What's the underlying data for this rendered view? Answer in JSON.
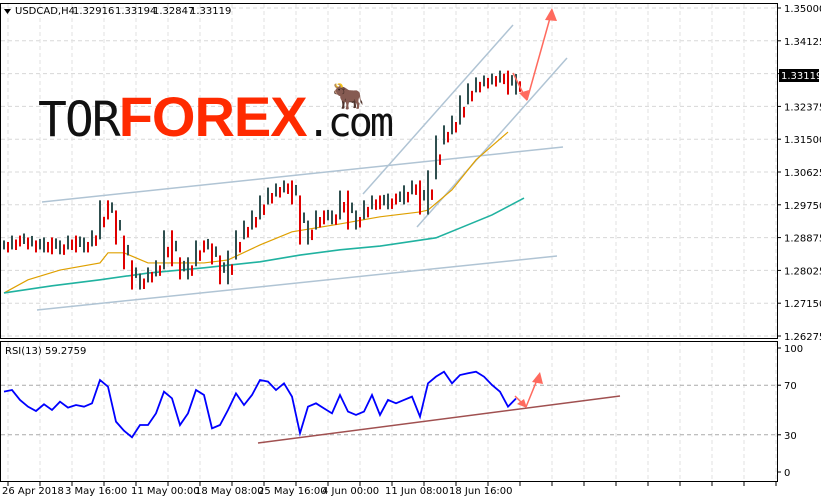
{
  "header": {
    "symbol_label": "USDCAD,H4",
    "open": "1.32916",
    "high": "1.33194",
    "low": "1.32847",
    "close": "1.33119",
    "dropdown_icon": "triangle-down-icon"
  },
  "logo": {
    "tor": "TOR",
    "forex": "FOREX",
    "com": ".com"
  },
  "price_axis": {
    "ticks": [
      "1.35000",
      "1.34125",
      "1.33250",
      "1.32375",
      "1.31500",
      "1.30625",
      "1.29750",
      "1.28875",
      "1.28025",
      "1.27150",
      "1.26275"
    ],
    "current_price": "1.33119"
  },
  "rsi": {
    "label": "RSI(13) 59.2759",
    "ticks": [
      "100",
      "70",
      "30",
      "0"
    ]
  },
  "time_axis": {
    "ticks": [
      "26 Apr 2018",
      "3 May 16:00",
      "11 May 00:00",
      "18 May 08:00",
      "25 May 16:00",
      "4 Jun 00:00",
      "11 Jun 08:00",
      "18 Jun 16:00"
    ]
  },
  "colors": {
    "bull_bar": "#2f4f4f",
    "bear_bar": "#e00000",
    "ma_fast": "#dfa000",
    "ma_slow": "#20b2a0",
    "rsi_line": "#0000ff",
    "channel": "#b0c4d4",
    "arrow": "#ff6a5e",
    "rsi_trend": "#a05050",
    "price_box": "#000000"
  },
  "chart_data": [
    {
      "type": "bar",
      "title": "USDCAD,H4",
      "ylim": [
        1.26275,
        1.35
      ],
      "grid": true,
      "close": [
        1.2868,
        1.2881,
        1.2876,
        1.2868,
        1.286,
        1.2876,
        1.2855,
        1.2868,
        1.2881,
        1.286,
        1.2876,
        1.2895,
        1.2975,
        1.2948,
        1.2881,
        1.2815,
        1.2761,
        1.278,
        1.2796,
        1.2815,
        1.2895,
        1.2823,
        1.2788,
        1.2823,
        1.2868,
        1.286,
        1.2828,
        1.2775,
        1.2841,
        1.2895,
        1.2921,
        1.2948,
        1.2988,
        1.3009,
        1.302,
        1.3028,
        1.2988,
        1.2881,
        1.2921,
        1.2948,
        1.2935,
        1.2948,
        1.3001,
        1.2921,
        1.2948,
        1.2975,
        1.2988,
        1.2975,
        1.2993,
        1.2988,
        1.3015,
        1.3028,
        1.2961,
        1.3055,
        1.3148,
        1.3175,
        1.3201,
        1.3255,
        1.3287,
        1.3303,
        1.3308,
        1.3313,
        1.3321,
        1.3281,
        1.33119
      ],
      "ma_fast": [
        [
          0,
          1.274
        ],
        [
          3,
          1.2775
        ],
        [
          7,
          1.2801
        ],
        [
          12,
          1.282
        ],
        [
          13,
          1.2847
        ],
        [
          15,
          1.2847
        ],
        [
          18,
          1.282
        ],
        [
          25,
          1.282
        ],
        [
          28,
          1.2828
        ],
        [
          32,
          1.2868
        ],
        [
          36,
          1.2903
        ],
        [
          42,
          1.2924
        ],
        [
          47,
          1.2943
        ],
        [
          52,
          1.2956
        ],
        [
          53,
          1.2961
        ],
        [
          56,
          1.3015
        ],
        [
          59,
          1.3095
        ],
        [
          63,
          1.3169
        ]
      ],
      "ma_slow": [
        [
          0,
          1.274
        ],
        [
          6,
          1.2759
        ],
        [
          12,
          1.2775
        ],
        [
          18,
          1.2793
        ],
        [
          25,
          1.2807
        ],
        [
          32,
          1.2823
        ],
        [
          37,
          1.2841
        ],
        [
          42,
          1.2855
        ],
        [
          47,
          1.2865
        ],
        [
          54,
          1.2887
        ],
        [
          57,
          1.2913
        ],
        [
          61,
          1.2948
        ],
        [
          65,
          1.2993
        ]
      ]
    },
    {
      "type": "line",
      "title": "RSI(13) 59.2759",
      "ylim": [
        0,
        100
      ],
      "levels": [
        30,
        70
      ],
      "values": [
        64.8,
        66.1,
        58.1,
        52.7,
        49.2,
        54.6,
        50.0,
        56.7,
        51.9,
        54.0,
        52.7,
        55.4,
        74.2,
        68.8,
        40.6,
        33.3,
        28.0,
        37.9,
        37.9,
        47.3,
        64.8,
        59.4,
        37.9,
        47.3,
        66.1,
        62.1,
        35.2,
        37.9,
        50.0,
        63.4,
        54.0,
        62.1,
        74.2,
        72.9,
        66.1,
        71.5,
        60.8,
        31.2,
        52.7,
        55.4,
        51.3,
        47.3,
        62.1,
        48.7,
        46.0,
        48.7,
        62.1,
        46.0,
        58.1,
        55.4,
        58.1,
        60.8,
        44.6,
        71.5,
        76.9,
        80.9,
        71.5,
        78.2,
        79.6,
        80.9,
        76.9,
        70.2,
        64.8,
        52.7,
        59.3
      ]
    }
  ]
}
